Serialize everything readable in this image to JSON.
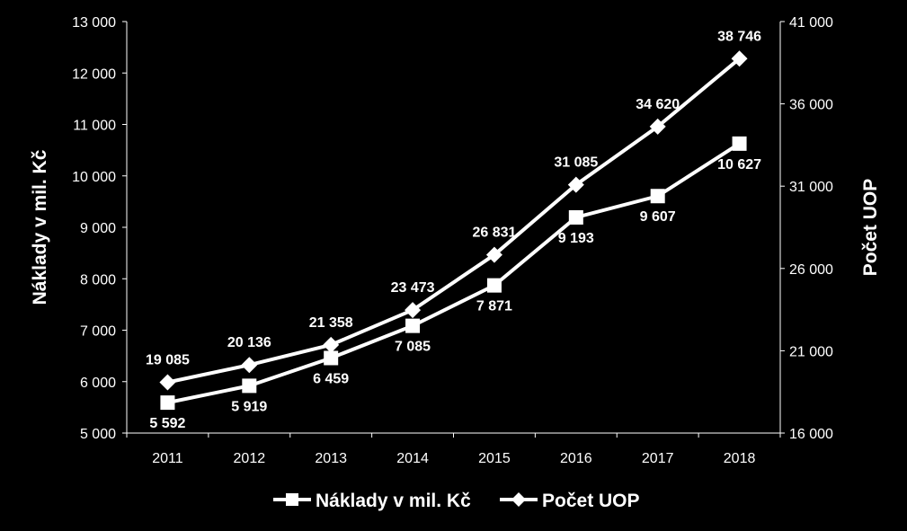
{
  "chart_data": {
    "type": "line",
    "categories": [
      "2011",
      "2012",
      "2013",
      "2014",
      "2015",
      "2016",
      "2017",
      "2018"
    ],
    "series": [
      {
        "name": "Náklady v mil. Kč",
        "axis": "left",
        "marker": "square",
        "values": [
          5592,
          5919,
          6459,
          7085,
          7871,
          9193,
          9607,
          10627
        ],
        "labels": [
          "5 592",
          "5 919",
          "6 459",
          "7 085",
          "7 871",
          "9 193",
          "9 607",
          "10 627"
        ]
      },
      {
        "name": "Počet UOP",
        "axis": "right",
        "marker": "diamond",
        "values": [
          19085,
          20136,
          21358,
          23473,
          26831,
          31085,
          34620,
          38746
        ],
        "labels": [
          "19 085",
          "20 136",
          "21 358",
          "23 473",
          "26 831",
          "31 085",
          "34 620",
          "38 746"
        ]
      }
    ],
    "ylabel": "Náklady v mil. Kč",
    "y2label": "Počet UOP",
    "ylim": [
      5000,
      13000
    ],
    "y2lim": [
      16000,
      41000
    ],
    "yticks": [
      "5 000",
      "6 000",
      "7 000",
      "8 000",
      "9 000",
      "10 000",
      "11 000",
      "12 000",
      "13 000"
    ],
    "y2ticks": [
      "16 000",
      "21 000",
      "26 000",
      "31 000",
      "36 000",
      "41 000"
    ],
    "grid": false,
    "legend": "bottom",
    "colors": {
      "background": "#000000",
      "line": "#ffffff",
      "text": "#ffffff"
    }
  }
}
